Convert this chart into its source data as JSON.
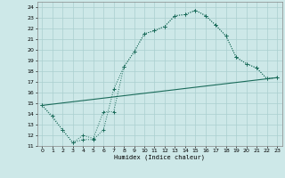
{
  "xlabel": "Humidex (Indice chaleur)",
  "bg_color": "#cde8e8",
  "line_color": "#1a6b5a",
  "grid_color": "#aacfcf",
  "xlim": [
    -0.5,
    23.5
  ],
  "ylim": [
    11,
    24.5
  ],
  "xticks": [
    0,
    1,
    2,
    3,
    4,
    5,
    6,
    7,
    8,
    9,
    10,
    11,
    12,
    13,
    14,
    15,
    16,
    17,
    18,
    19,
    20,
    21,
    22,
    23
  ],
  "yticks": [
    11,
    12,
    13,
    14,
    15,
    16,
    17,
    18,
    19,
    20,
    21,
    22,
    23,
    24
  ],
  "curve1_x": [
    0,
    1,
    2,
    3,
    4,
    5,
    6,
    7,
    8,
    9,
    10,
    11,
    12,
    13,
    14,
    15,
    16,
    17,
    18,
    19,
    20,
    21,
    22,
    23
  ],
  "curve1_y": [
    14.8,
    13.8,
    12.5,
    11.3,
    11.6,
    11.6,
    12.5,
    16.3,
    18.4,
    19.8,
    21.5,
    21.8,
    22.2,
    23.2,
    23.3,
    23.7,
    23.2,
    22.3,
    21.3,
    19.3,
    18.7,
    18.3,
    17.3,
    17.4
  ],
  "curve2_x": [
    0,
    2,
    3,
    4,
    5,
    6,
    7,
    8,
    9,
    10,
    11,
    12,
    13,
    14,
    15,
    16,
    17,
    18,
    19,
    20,
    21,
    22,
    23
  ],
  "curve2_y": [
    14.8,
    12.5,
    11.3,
    12.0,
    11.7,
    14.2,
    14.2,
    18.4,
    19.8,
    21.5,
    21.8,
    22.2,
    23.2,
    23.3,
    23.7,
    23.2,
    22.3,
    21.3,
    19.3,
    18.7,
    18.3,
    17.3,
    17.4
  ],
  "curve3_x": [
    0,
    23
  ],
  "curve3_y": [
    14.8,
    17.4
  ]
}
